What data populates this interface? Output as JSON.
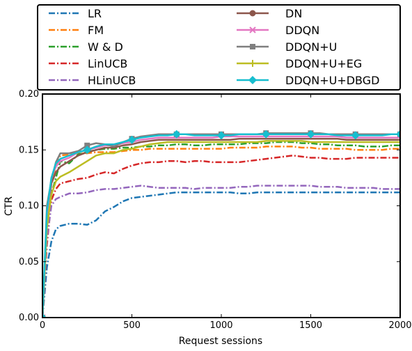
{
  "chart_data": {
    "type": "line",
    "title": "",
    "xlabel": "Request sessions",
    "ylabel": "CTR",
    "xlim": [
      0,
      2000
    ],
    "ylim": [
      0,
      0.2
    ],
    "xticks": [
      "0",
      "500",
      "1000",
      "1500",
      "2000"
    ],
    "yticks": [
      "0.00",
      "0.05",
      "0.10",
      "0.15",
      "0.20"
    ],
    "grid": false,
    "legend_position": "top, above plot, two columns",
    "x": [
      0,
      25,
      50,
      75,
      100,
      150,
      200,
      250,
      300,
      350,
      400,
      450,
      500,
      550,
      600,
      650,
      700,
      750,
      800,
      850,
      900,
      950,
      1000,
      1050,
      1100,
      1150,
      1200,
      1250,
      1300,
      1350,
      1400,
      1450,
      1500,
      1550,
      1600,
      1650,
      1700,
      1750,
      1800,
      1850,
      1900,
      1950,
      2000
    ],
    "series": [
      {
        "name": "LR",
        "color": "#1f77b4",
        "dash": "dashdot",
        "marker": "none",
        "values": [
          0.0,
          0.045,
          0.068,
          0.079,
          0.082,
          0.084,
          0.084,
          0.083,
          0.087,
          0.095,
          0.099,
          0.104,
          0.107,
          0.108,
          0.109,
          0.11,
          0.111,
          0.112,
          0.112,
          0.112,
          0.112,
          0.112,
          0.112,
          0.112,
          0.111,
          0.111,
          0.112,
          0.112,
          0.112,
          0.112,
          0.112,
          0.112,
          0.112,
          0.112,
          0.112,
          0.112,
          0.112,
          0.112,
          0.112,
          0.112,
          0.112,
          0.112,
          0.112
        ]
      },
      {
        "name": "FM",
        "color": "#ff7f0e",
        "dash": "dashdot",
        "marker": "none",
        "values": [
          0.0,
          0.08,
          0.12,
          0.135,
          0.145,
          0.146,
          0.147,
          0.147,
          0.148,
          0.148,
          0.148,
          0.149,
          0.15,
          0.15,
          0.151,
          0.151,
          0.151,
          0.151,
          0.151,
          0.151,
          0.151,
          0.151,
          0.151,
          0.152,
          0.152,
          0.152,
          0.152,
          0.153,
          0.153,
          0.153,
          0.153,
          0.152,
          0.152,
          0.151,
          0.151,
          0.151,
          0.151,
          0.15,
          0.15,
          0.15,
          0.15,
          0.151,
          0.151
        ]
      },
      {
        "name": "W & D",
        "color": "#2ca02c",
        "dash": "dashdot",
        "marker": "none",
        "values": [
          0.0,
          0.075,
          0.11,
          0.125,
          0.14,
          0.138,
          0.146,
          0.148,
          0.15,
          0.151,
          0.151,
          0.152,
          0.152,
          0.153,
          0.153,
          0.154,
          0.154,
          0.155,
          0.155,
          0.154,
          0.154,
          0.155,
          0.155,
          0.155,
          0.155,
          0.156,
          0.156,
          0.156,
          0.157,
          0.157,
          0.157,
          0.156,
          0.156,
          0.155,
          0.155,
          0.154,
          0.154,
          0.154,
          0.153,
          0.153,
          0.153,
          0.154,
          0.154
        ]
      },
      {
        "name": "LinUCB",
        "color": "#d62728",
        "dash": "dashdot",
        "marker": "none",
        "values": [
          0.0,
          0.065,
          0.105,
          0.115,
          0.12,
          0.122,
          0.124,
          0.125,
          0.128,
          0.13,
          0.129,
          0.133,
          0.136,
          0.138,
          0.139,
          0.139,
          0.14,
          0.14,
          0.139,
          0.14,
          0.14,
          0.139,
          0.139,
          0.139,
          0.139,
          0.14,
          0.141,
          0.142,
          0.143,
          0.144,
          0.145,
          0.144,
          0.143,
          0.143,
          0.142,
          0.142,
          0.142,
          0.143,
          0.143,
          0.143,
          0.143,
          0.143,
          0.143
        ]
      },
      {
        "name": "HLinUCB",
        "color": "#9467bd",
        "dash": "dashdot",
        "marker": "none",
        "values": [
          0.0,
          0.07,
          0.1,
          0.106,
          0.108,
          0.111,
          0.111,
          0.112,
          0.114,
          0.115,
          0.115,
          0.116,
          0.117,
          0.118,
          0.117,
          0.116,
          0.116,
          0.116,
          0.116,
          0.115,
          0.116,
          0.116,
          0.116,
          0.116,
          0.117,
          0.117,
          0.118,
          0.118,
          0.118,
          0.118,
          0.118,
          0.118,
          0.118,
          0.117,
          0.117,
          0.117,
          0.116,
          0.116,
          0.116,
          0.116,
          0.115,
          0.115,
          0.115
        ]
      },
      {
        "name": "DN",
        "color": "#8c564b",
        "dash": "solid",
        "marker": "circle",
        "marker_every": [
          0
        ],
        "values": [
          0.0,
          0.085,
          0.12,
          0.13,
          0.135,
          0.14,
          0.145,
          0.148,
          0.15,
          0.152,
          0.152,
          0.154,
          0.155,
          0.157,
          0.158,
          0.159,
          0.159,
          0.159,
          0.159,
          0.159,
          0.159,
          0.159,
          0.159,
          0.159,
          0.16,
          0.16,
          0.16,
          0.16,
          0.16,
          0.16,
          0.16,
          0.16,
          0.16,
          0.16,
          0.16,
          0.16,
          0.159,
          0.159,
          0.159,
          0.159,
          0.159,
          0.159,
          0.159
        ]
      },
      {
        "name": "DDQN",
        "color": "#e377c2",
        "dash": "solid",
        "marker": "x",
        "marker_every": [
          0
        ],
        "values": [
          0.0,
          0.09,
          0.125,
          0.135,
          0.14,
          0.143,
          0.148,
          0.15,
          0.152,
          0.154,
          0.154,
          0.156,
          0.157,
          0.159,
          0.16,
          0.161,
          0.161,
          0.161,
          0.161,
          0.161,
          0.161,
          0.161,
          0.162,
          0.162,
          0.162,
          0.162,
          0.162,
          0.162,
          0.162,
          0.162,
          0.162,
          0.162,
          0.162,
          0.162,
          0.162,
          0.162,
          0.161,
          0.161,
          0.161,
          0.161,
          0.161,
          0.161,
          0.161
        ]
      },
      {
        "name": "DDQN+U",
        "color": "#7f7f7f",
        "dash": "solid",
        "marker": "square",
        "marker_every": [
          0,
          250,
          500,
          750,
          1000,
          1250,
          1500,
          1750,
          2000
        ],
        "values": [
          0.0,
          0.1,
          0.123,
          0.139,
          0.147,
          0.147,
          0.149,
          0.154,
          0.156,
          0.155,
          0.153,
          0.157,
          0.16,
          0.162,
          0.163,
          0.164,
          0.164,
          0.164,
          0.164,
          0.164,
          0.164,
          0.164,
          0.164,
          0.164,
          0.164,
          0.164,
          0.164,
          0.165,
          0.165,
          0.165,
          0.165,
          0.165,
          0.165,
          0.165,
          0.164,
          0.164,
          0.164,
          0.164,
          0.164,
          0.164,
          0.164,
          0.164,
          0.164
        ]
      },
      {
        "name": "DDQN+U+EG",
        "color": "#bcbd22",
        "dash": "solid",
        "marker": "plus",
        "marker_every": [
          0
        ],
        "values": [
          0.0,
          0.08,
          0.11,
          0.122,
          0.126,
          0.13,
          0.135,
          0.14,
          0.145,
          0.147,
          0.147,
          0.15,
          0.151,
          0.153,
          0.155,
          0.156,
          0.157,
          0.157,
          0.157,
          0.157,
          0.157,
          0.157,
          0.157,
          0.157,
          0.157,
          0.157,
          0.157,
          0.158,
          0.158,
          0.158,
          0.158,
          0.158,
          0.157,
          0.157,
          0.157,
          0.157,
          0.157,
          0.157,
          0.157,
          0.157,
          0.157,
          0.157,
          0.157
        ]
      },
      {
        "name": "DDQN+U+DBGD",
        "color": "#17becf",
        "dash": "solid",
        "marker": "diamond",
        "marker_every": [
          0,
          250,
          500,
          750,
          1000,
          1250,
          1500,
          1750,
          2000
        ],
        "values": [
          0.0,
          0.095,
          0.125,
          0.138,
          0.142,
          0.145,
          0.148,
          0.15,
          0.153,
          0.155,
          0.155,
          0.157,
          0.159,
          0.161,
          0.162,
          0.163,
          0.163,
          0.164,
          0.164,
          0.163,
          0.163,
          0.163,
          0.163,
          0.163,
          0.164,
          0.164,
          0.164,
          0.164,
          0.164,
          0.164,
          0.164,
          0.164,
          0.164,
          0.164,
          0.164,
          0.163,
          0.163,
          0.163,
          0.163,
          0.163,
          0.163,
          0.164,
          0.164
        ]
      }
    ]
  }
}
